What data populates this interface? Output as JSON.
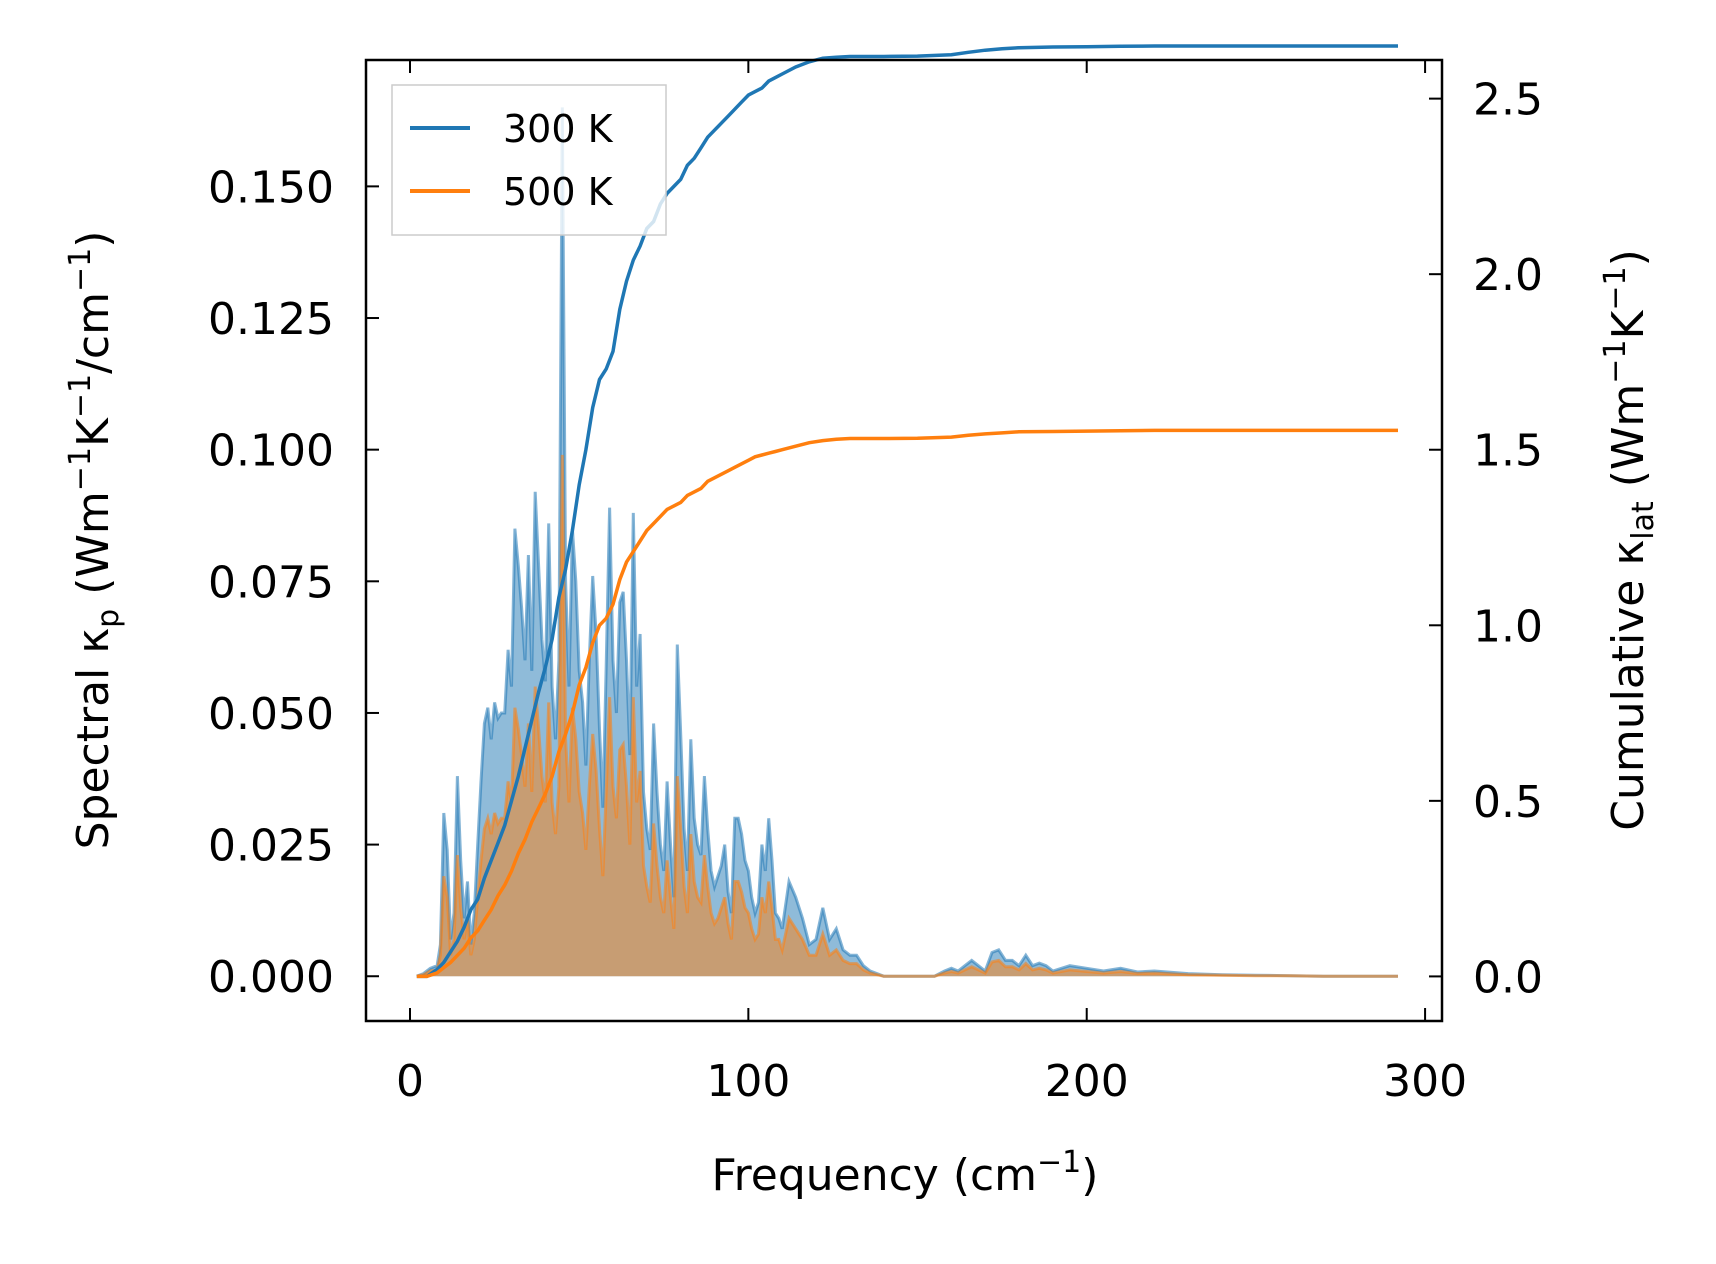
{
  "chart_data": {
    "type": "area+line",
    "title": "",
    "xlabel": {
      "main": "Frequency (cm",
      "sup": "−1",
      "tail": ")"
    },
    "ylabel_left": {
      "main": "Spectral κ",
      "sub": "p",
      "rest": " (Wm",
      "sup1": "−1",
      "mid": "K",
      "sup2": "−1",
      "mid2": "/cm",
      "sup3": "−1",
      "tail": ")"
    },
    "ylabel_right": {
      "main": "Cumulative κ",
      "sub": "lat",
      "rest": " (Wm",
      "sup1": "−1",
      "mid": "K",
      "sup2": "−1",
      "tail": ")"
    },
    "xlim": [
      -13,
      305
    ],
    "ylim_left": [
      -0.0085,
      0.174
    ],
    "ylim_right": [
      -0.127,
      2.61
    ],
    "x_ticks": [
      0,
      100,
      200,
      300
    ],
    "x_tick_labels": [
      "0",
      "100",
      "200",
      "300"
    ],
    "y_left_ticks": [
      0,
      0.025,
      0.05,
      0.075,
      0.1,
      0.125,
      0.15
    ],
    "y_left_tick_labels": [
      "0.000",
      "0.025",
      "0.050",
      "0.075",
      "0.100",
      "0.125",
      "0.150"
    ],
    "y_right_ticks": [
      0,
      0.5,
      1.0,
      1.5,
      2.0,
      2.5
    ],
    "y_right_tick_labels": [
      "0.0",
      "0.5",
      "1.0",
      "1.5",
      "2.0",
      "2.5"
    ],
    "legend": {
      "position": "upper left",
      "entries": [
        "300 K",
        "500 K"
      ]
    },
    "colors": {
      "s300": "#1f77b4",
      "s500": "#ff7f0e",
      "fill300": "#1f77b4",
      "fill500": "#ff7f0e"
    },
    "spectral": [
      {
        "name": "300 K",
        "x": [
          2,
          4,
          6,
          8,
          9,
          10,
          11,
          12,
          13,
          14,
          15,
          16,
          17,
          18,
          19,
          20,
          21,
          22,
          23,
          24,
          25,
          26,
          27,
          28,
          29,
          30,
          31,
          32,
          33,
          34,
          35,
          36,
          37,
          38,
          39,
          40,
          41,
          42,
          43,
          44,
          45,
          46,
          47,
          48,
          49,
          50,
          51,
          52,
          53,
          54,
          55,
          56,
          57,
          58,
          59,
          60,
          61,
          62,
          63,
          64,
          65,
          66,
          67,
          68,
          69,
          70,
          71,
          72,
          73,
          74,
          75,
          76,
          77,
          78,
          79,
          80,
          81,
          82,
          83,
          84,
          85,
          86,
          87,
          88,
          89,
          90,
          91,
          92,
          93,
          94,
          95,
          96,
          97,
          98,
          99,
          100,
          101,
          102,
          103,
          104,
          105,
          106,
          107,
          108,
          109,
          110,
          112,
          114,
          116,
          118,
          120,
          122,
          124,
          126,
          128,
          130,
          132,
          134,
          136,
          140,
          145,
          150,
          155,
          158,
          160,
          162,
          164,
          166,
          168,
          170,
          172,
          174,
          176,
          178,
          180,
          182,
          184,
          186,
          188,
          190,
          195,
          200,
          205,
          210,
          215,
          220,
          230,
          240,
          250,
          260,
          270,
          280,
          292
        ],
        "y": [
          0,
          0.0005,
          0.0015,
          0.002,
          0.006,
          0.031,
          0.024,
          0.007,
          0.012,
          0.038,
          0.022,
          0.011,
          0.018,
          0.006,
          0.012,
          0.025,
          0.037,
          0.048,
          0.051,
          0.045,
          0.052,
          0.049,
          0.05,
          0.05,
          0.062,
          0.055,
          0.085,
          0.078,
          0.07,
          0.06,
          0.08,
          0.058,
          0.092,
          0.078,
          0.064,
          0.056,
          0.086,
          0.055,
          0.045,
          0.06,
          0.165,
          0.075,
          0.055,
          0.085,
          0.075,
          0.058,
          0.052,
          0.04,
          0.06,
          0.076,
          0.065,
          0.047,
          0.032,
          0.059,
          0.089,
          0.06,
          0.05,
          0.071,
          0.073,
          0.06,
          0.042,
          0.088,
          0.055,
          0.065,
          0.035,
          0.028,
          0.024,
          0.048,
          0.035,
          0.025,
          0.02,
          0.037,
          0.025,
          0.015,
          0.063,
          0.046,
          0.028,
          0.02,
          0.045,
          0.03,
          0.025,
          0.023,
          0.038,
          0.028,
          0.02,
          0.017,
          0.019,
          0.021,
          0.025,
          0.016,
          0.012,
          0.03,
          0.03,
          0.027,
          0.022,
          0.02,
          0.015,
          0.012,
          0.014,
          0.025,
          0.02,
          0.03,
          0.022,
          0.012,
          0.011,
          0.009,
          0.018,
          0.015,
          0.011,
          0.006,
          0.007,
          0.013,
          0.007,
          0.009,
          0.005,
          0.004,
          0.004,
          0.002,
          0.001,
          0,
          0,
          0,
          0,
          0.001,
          0.0015,
          0.001,
          0.002,
          0.003,
          0.002,
          0.001,
          0.0045,
          0.005,
          0.003,
          0.003,
          0.002,
          0.004,
          0.002,
          0.0025,
          0.002,
          0.001,
          0.002,
          0.0015,
          0.001,
          0.0015,
          0.0008,
          0.001,
          0.0005,
          0.0003,
          0.0002,
          0.0001,
          0,
          0,
          0
        ]
      },
      {
        "name": "500 K",
        "x": [
          2,
          4,
          6,
          8,
          9,
          10,
          11,
          12,
          13,
          14,
          15,
          16,
          17,
          18,
          19,
          20,
          21,
          22,
          23,
          24,
          25,
          26,
          27,
          28,
          29,
          30,
          31,
          32,
          33,
          34,
          35,
          36,
          37,
          38,
          39,
          40,
          41,
          42,
          43,
          44,
          45,
          46,
          47,
          48,
          49,
          50,
          51,
          52,
          53,
          54,
          55,
          56,
          57,
          58,
          59,
          60,
          61,
          62,
          63,
          64,
          65,
          66,
          67,
          68,
          69,
          70,
          71,
          72,
          73,
          74,
          75,
          76,
          77,
          78,
          79,
          80,
          81,
          82,
          83,
          84,
          85,
          86,
          87,
          88,
          89,
          90,
          91,
          92,
          93,
          94,
          95,
          96,
          97,
          98,
          99,
          100,
          101,
          102,
          103,
          104,
          105,
          106,
          107,
          108,
          109,
          110,
          112,
          114,
          116,
          118,
          120,
          122,
          124,
          126,
          128,
          130,
          132,
          134,
          136,
          140,
          145,
          150,
          155,
          158,
          160,
          162,
          164,
          166,
          168,
          170,
          172,
          174,
          176,
          178,
          180,
          182,
          184,
          186,
          188,
          190,
          195,
          200,
          205,
          210,
          215,
          220,
          230,
          240,
          250,
          260,
          270,
          280,
          292
        ],
        "y": [
          0,
          0.0003,
          0.001,
          0.0012,
          0.004,
          0.019,
          0.015,
          0.004,
          0.007,
          0.023,
          0.013,
          0.007,
          0.011,
          0.004,
          0.007,
          0.015,
          0.022,
          0.028,
          0.03,
          0.027,
          0.031,
          0.029,
          0.03,
          0.03,
          0.037,
          0.033,
          0.051,
          0.047,
          0.042,
          0.036,
          0.048,
          0.035,
          0.055,
          0.047,
          0.038,
          0.033,
          0.052,
          0.033,
          0.027,
          0.036,
          0.099,
          0.045,
          0.033,
          0.051,
          0.045,
          0.035,
          0.031,
          0.024,
          0.036,
          0.046,
          0.039,
          0.028,
          0.019,
          0.035,
          0.053,
          0.036,
          0.03,
          0.043,
          0.044,
          0.036,
          0.025,
          0.053,
          0.033,
          0.039,
          0.021,
          0.017,
          0.014,
          0.029,
          0.021,
          0.015,
          0.012,
          0.022,
          0.015,
          0.009,
          0.038,
          0.028,
          0.017,
          0.012,
          0.027,
          0.018,
          0.015,
          0.014,
          0.023,
          0.017,
          0.012,
          0.01,
          0.011,
          0.013,
          0.015,
          0.01,
          0.007,
          0.018,
          0.018,
          0.016,
          0.013,
          0.012,
          0.009,
          0.007,
          0.008,
          0.015,
          0.012,
          0.018,
          0.013,
          0.007,
          0.007,
          0.005,
          0.011,
          0.009,
          0.007,
          0.004,
          0.004,
          0.008,
          0.004,
          0.005,
          0.003,
          0.0024,
          0.0024,
          0.0012,
          0.0006,
          0,
          0,
          0,
          0,
          0.0006,
          0.0009,
          0.0006,
          0.0012,
          0.0018,
          0.0012,
          0.0006,
          0.0027,
          0.003,
          0.0018,
          0.0018,
          0.0012,
          0.0024,
          0.0012,
          0.0015,
          0.0012,
          0.0006,
          0.0012,
          0.0009,
          0.0006,
          0.0009,
          0.0005,
          0.0006,
          0.0003,
          0.0002,
          0.0001,
          0.0001,
          0,
          0,
          0
        ]
      }
    ],
    "cumulative": [
      {
        "name": "300 K",
        "x": [
          2,
          5,
          8,
          10,
          12,
          14,
          16,
          18,
          20,
          22,
          24,
          26,
          28,
          30,
          32,
          34,
          36,
          38,
          40,
          42,
          44,
          46,
          48,
          50,
          52,
          54,
          56,
          58,
          60,
          62,
          64,
          66,
          68,
          70,
          72,
          74,
          76,
          78,
          80,
          82,
          84,
          86,
          88,
          90,
          92,
          94,
          96,
          98,
          100,
          102,
          104,
          106,
          108,
          110,
          114,
          118,
          122,
          126,
          130,
          135,
          140,
          150,
          160,
          165,
          170,
          175,
          180,
          190,
          200,
          210,
          220,
          240,
          260,
          292
        ],
        "y": [
          0,
          0,
          0.02,
          0.04,
          0.07,
          0.1,
          0.14,
          0.19,
          0.22,
          0.28,
          0.33,
          0.38,
          0.43,
          0.5,
          0.57,
          0.65,
          0.73,
          0.81,
          0.88,
          0.96,
          1.08,
          1.16,
          1.27,
          1.4,
          1.5,
          1.62,
          1.7,
          1.73,
          1.78,
          1.9,
          1.98,
          2.04,
          2.08,
          2.13,
          2.15,
          2.2,
          2.23,
          2.25,
          2.27,
          2.31,
          2.33,
          2.36,
          2.39,
          2.41,
          2.43,
          2.45,
          2.47,
          2.49,
          2.51,
          2.52,
          2.53,
          2.55,
          2.56,
          2.57,
          2.59,
          2.605,
          2.615,
          2.618,
          2.62,
          2.62,
          2.62,
          2.621,
          2.625,
          2.632,
          2.638,
          2.642,
          2.645,
          2.647,
          2.648,
          2.649,
          2.65,
          2.65,
          2.65,
          2.65
        ]
      },
      {
        "name": "500 K",
        "x": [
          2,
          5,
          8,
          10,
          12,
          14,
          16,
          18,
          20,
          22,
          24,
          26,
          28,
          30,
          32,
          34,
          36,
          38,
          40,
          42,
          44,
          46,
          48,
          50,
          52,
          54,
          56,
          58,
          60,
          62,
          64,
          66,
          68,
          70,
          72,
          74,
          76,
          78,
          80,
          82,
          84,
          86,
          88,
          90,
          92,
          94,
          96,
          98,
          100,
          102,
          104,
          106,
          108,
          110,
          114,
          118,
          122,
          126,
          130,
          135,
          140,
          150,
          160,
          165,
          170,
          175,
          180,
          190,
          200,
          210,
          220,
          240,
          260,
          292
        ],
        "y": [
          0,
          0,
          0.01,
          0.025,
          0.04,
          0.06,
          0.08,
          0.11,
          0.13,
          0.16,
          0.19,
          0.23,
          0.26,
          0.3,
          0.35,
          0.39,
          0.44,
          0.48,
          0.52,
          0.57,
          0.64,
          0.69,
          0.75,
          0.83,
          0.88,
          0.95,
          1.0,
          1.02,
          1.06,
          1.13,
          1.18,
          1.21,
          1.24,
          1.27,
          1.29,
          1.31,
          1.33,
          1.34,
          1.35,
          1.37,
          1.38,
          1.39,
          1.41,
          1.42,
          1.43,
          1.44,
          1.45,
          1.46,
          1.47,
          1.48,
          1.485,
          1.49,
          1.495,
          1.5,
          1.51,
          1.52,
          1.526,
          1.53,
          1.532,
          1.532,
          1.532,
          1.533,
          1.536,
          1.541,
          1.545,
          1.548,
          1.551,
          1.552,
          1.553,
          1.554,
          1.555,
          1.555,
          1.555,
          1.555
        ]
      }
    ]
  }
}
